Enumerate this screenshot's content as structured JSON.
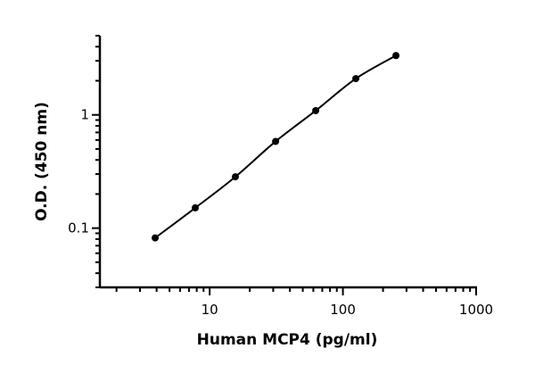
{
  "chart_data": {
    "type": "line",
    "title": "",
    "xlabel": "Human MCP4 (pg/ml)",
    "ylabel": "O.D. (450 nm)",
    "x_scale": "log",
    "y_scale": "log",
    "xlim": [
      1.5,
      1000
    ],
    "ylim": [
      0.03,
      5
    ],
    "x_ticks": [
      {
        "value": 10,
        "label": "10"
      },
      {
        "value": 100,
        "label": "100"
      },
      {
        "value": 1000,
        "label": "1000"
      }
    ],
    "y_ticks": [
      {
        "value": 0.1,
        "label": "0.1"
      },
      {
        "value": 1,
        "label": "1"
      }
    ],
    "grid": false,
    "legend": "none",
    "colors": {
      "line": "#000000",
      "marker": "#000000"
    },
    "series": [
      {
        "x": [
          3.9,
          7.8,
          15.6,
          31.25,
          62.5,
          125,
          250
        ],
        "y": [
          0.082,
          0.151,
          0.284,
          0.583,
          1.09,
          2.09,
          3.34
        ]
      }
    ]
  }
}
